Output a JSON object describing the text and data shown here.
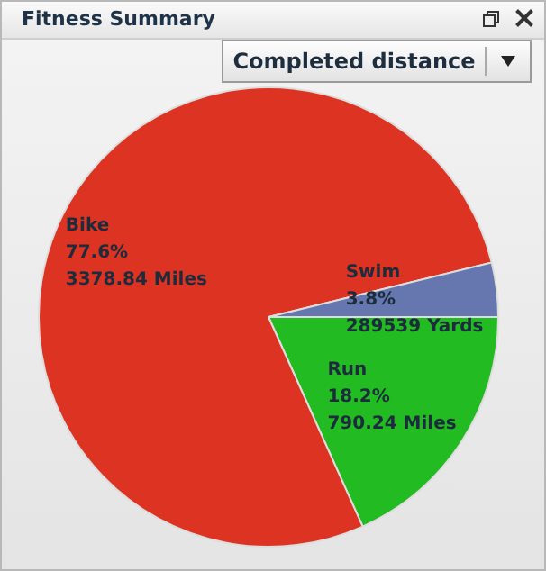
{
  "chart_data": {
    "type": "pie",
    "title": "Fitness Summary",
    "subtitle": "Completed distance",
    "categories": [
      "Run",
      "Bike",
      "Swim"
    ],
    "values": [
      18.2,
      77.6,
      3.8
    ],
    "colors": [
      "#22bb22",
      "#dd3322",
      "#6677b0"
    ],
    "value_labels": [
      "18.2%\n790.24 Miles",
      "77.6%\n3378.84 Miles",
      "3.8%\n289539 Yards"
    ],
    "legend": false
  }
}
